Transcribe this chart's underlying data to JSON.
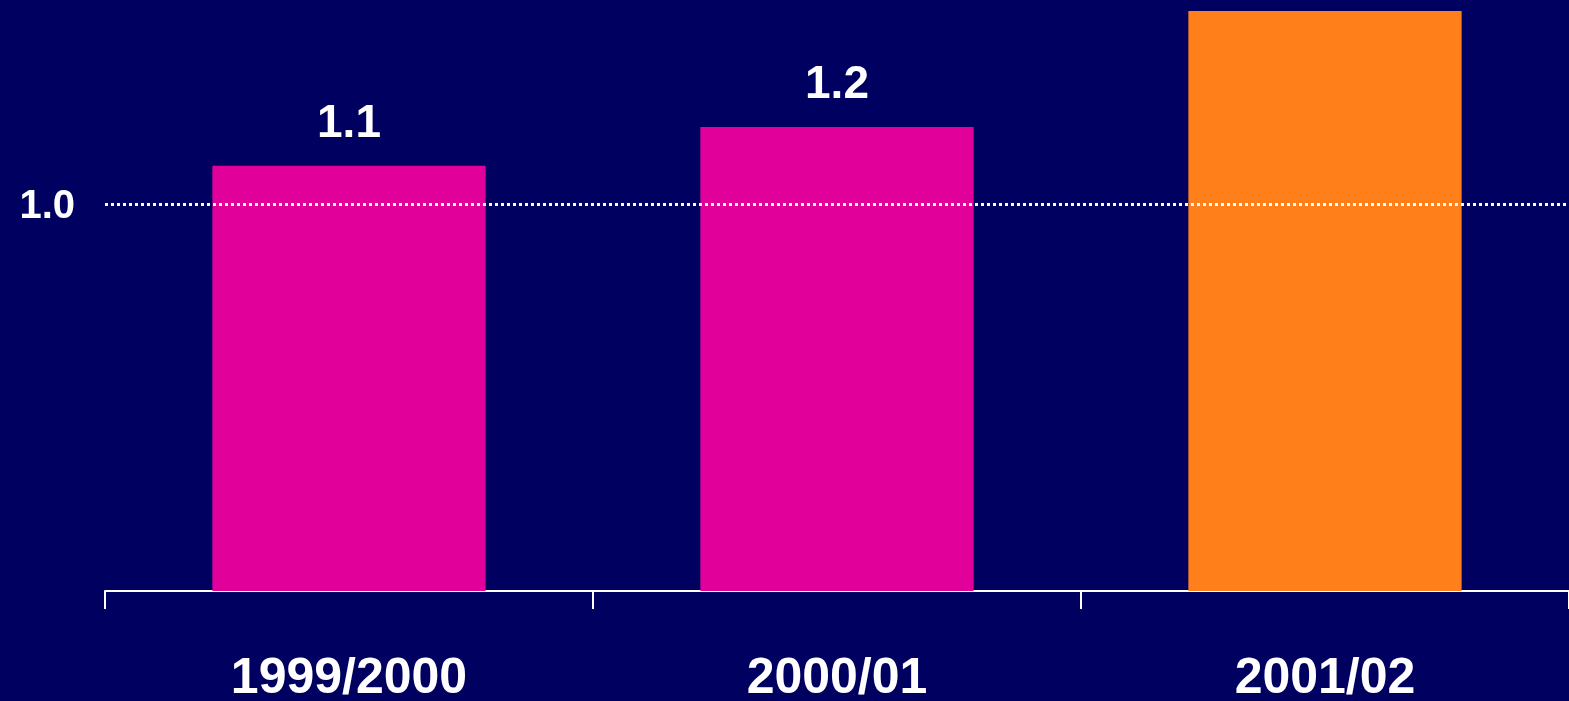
{
  "chart_data": {
    "type": "bar",
    "ylim": [
      0,
      1.5
    ],
    "categories": [
      "1999/2000",
      "2000/01",
      "2001/02"
    ],
    "values": [
      1.1,
      1.2,
      1.5
    ],
    "colors": [
      "#e2009a",
      "#e2009a",
      "#ff7f1a"
    ],
    "value_labels": [
      "1.1",
      "1.2",
      null
    ],
    "ref_lines": [
      {
        "axis": "y",
        "value": 1.0,
        "label": "1.0",
        "color": "#ffffff",
        "line_style": "dotted"
      }
    ],
    "grid": false
  }
}
